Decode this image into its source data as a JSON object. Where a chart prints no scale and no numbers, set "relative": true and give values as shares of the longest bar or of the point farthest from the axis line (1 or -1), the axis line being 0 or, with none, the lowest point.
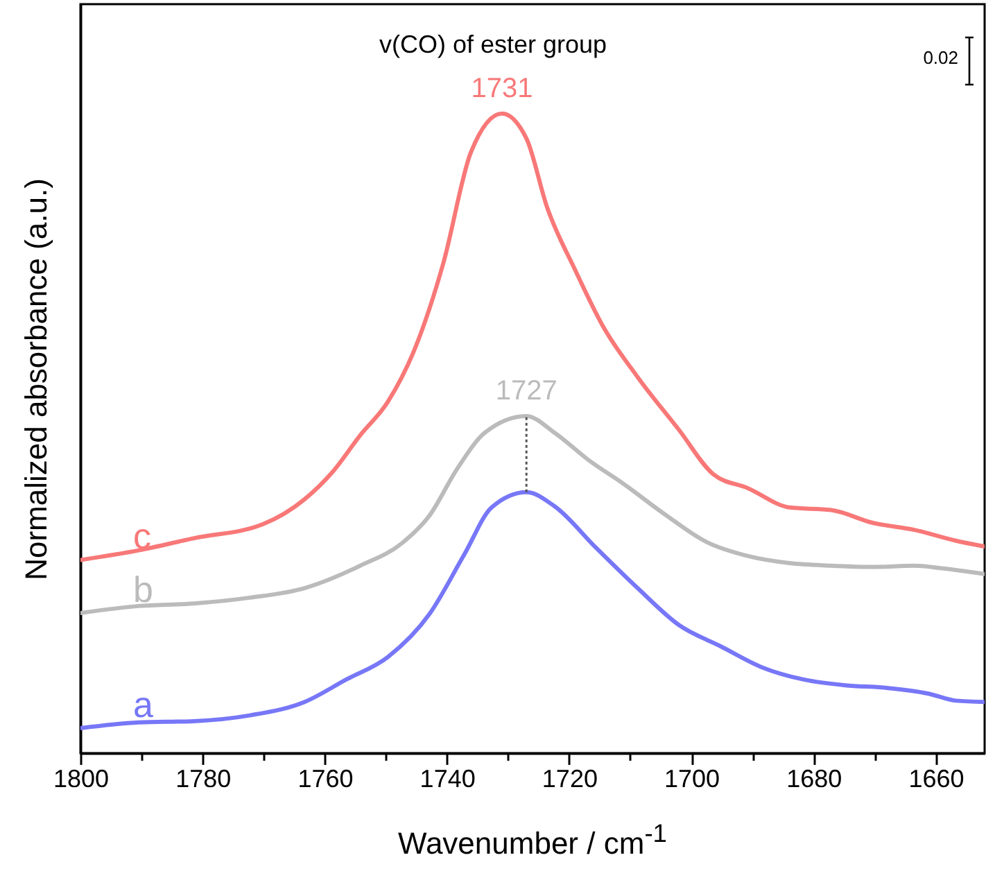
{
  "chart_data": {
    "type": "line",
    "relative": true,
    "xlabel": "Wavenumber / cm$^{-1}$",
    "ylabel": "Normalized absorbance (a.u.)",
    "xlim": [
      1800,
      1652
    ],
    "xticks": [
      1800,
      {
        "value": 1790,
        "label": null
      },
      1780,
      {
        "value": 1770,
        "label": null
      },
      1760,
      {
        "value": 1750,
        "label": null
      },
      1740,
      {
        "value": 1730,
        "label": null
      },
      1720,
      {
        "value": 1710,
        "label": null
      },
      1700,
      {
        "value": 1690,
        "label": null
      },
      1680,
      {
        "value": 1670,
        "label": null
      },
      1660
    ],
    "annotations": [
      "v(CO) of ester group",
      "0.02",
      {
        "text": "1731",
        "x": 1731,
        "y": 1.0
      },
      {
        "text": "1727",
        "x": 1727,
        "y": 0.527
      }
    ],
    "ref_lines": [
      {
        "axis": "x",
        "value": 1727,
        "line_style": "dotted",
        "color": "#555555"
      }
    ],
    "series": [
      {
        "name": "c",
        "color": "#f87878",
        "x": [
          1800,
          1790.5,
          1781.4,
          1770.1,
          1763.3,
          1758.7,
          1754.2,
          1749.7,
          1745.1,
          1740.6,
          1736.1,
          1731,
          1727,
          1723.6,
          1719.0,
          1714.5,
          1708.8,
          1702.0,
          1696.4,
          1690.7,
          1683.9,
          1677.1,
          1670.3,
          1663.5,
          1656.7,
          1652
        ],
        "values": [
          0.302,
          0.317,
          0.336,
          0.358,
          0.397,
          0.44,
          0.497,
          0.549,
          0.636,
          0.766,
          0.939,
          1.0,
          0.961,
          0.853,
          0.755,
          0.668,
          0.588,
          0.505,
          0.436,
          0.414,
          0.384,
          0.38,
          0.36,
          0.349,
          0.332,
          0.323
        ]
      },
      {
        "name": "b",
        "color": "#bbbbbb",
        "x": [
          1800,
          1790.5,
          1781.4,
          1772.3,
          1763.3,
          1754.2,
          1747.4,
          1742.9,
          1738.3,
          1733.8,
          1727,
          1722.4,
          1716.8,
          1711.1,
          1704.3,
          1697.5,
          1690.7,
          1683.9,
          1677.1,
          1670.3,
          1663.5,
          1659.0,
          1652
        ],
        "values": [
          0.219,
          0.23,
          0.234,
          0.243,
          0.258,
          0.293,
          0.328,
          0.371,
          0.445,
          0.501,
          0.527,
          0.501,
          0.458,
          0.421,
          0.373,
          0.33,
          0.308,
          0.297,
          0.293,
          0.291,
          0.293,
          0.289,
          0.28
        ]
      },
      {
        "name": "a",
        "color": "#7777f7",
        "x": [
          1800,
          1790.5,
          1781.4,
          1772.3,
          1763.3,
          1756.5,
          1749.7,
          1742.9,
          1737.2,
          1732.7,
          1727,
          1722.4,
          1715.6,
          1708.8,
          1702.0,
          1695.2,
          1688.4,
          1681.6,
          1674.8,
          1668.0,
          1661.2,
          1656.7,
          1652
        ],
        "values": [
          0.039,
          0.048,
          0.05,
          0.059,
          0.08,
          0.115,
          0.15,
          0.217,
          0.31,
          0.384,
          0.408,
          0.386,
          0.321,
          0.258,
          0.2,
          0.167,
          0.134,
          0.115,
          0.106,
          0.102,
          0.093,
          0.082,
          0.08
        ]
      }
    ]
  }
}
